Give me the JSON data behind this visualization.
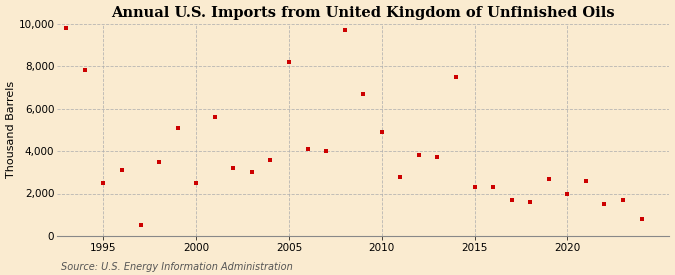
{
  "title": "Annual U.S. Imports from United Kingdom of Unfinished Oils",
  "ylabel": "Thousand Barrels",
  "source": "Source: U.S. Energy Information Administration",
  "background_color": "#faebd0",
  "marker_color": "#cc0000",
  "years": [
    1993,
    1994,
    1995,
    1996,
    1997,
    1998,
    1999,
    2000,
    2001,
    2002,
    2003,
    2004,
    2005,
    2006,
    2007,
    2008,
    2009,
    2010,
    2011,
    2012,
    2013,
    2014,
    2015,
    2016,
    2017,
    2018,
    2019,
    2020,
    2021,
    2022,
    2023,
    2024
  ],
  "values": [
    9800,
    7800,
    2500,
    3100,
    500,
    3500,
    5100,
    2500,
    5600,
    3200,
    3000,
    3600,
    8200,
    4100,
    4000,
    9700,
    6700,
    4900,
    2800,
    3800,
    3700,
    7500,
    2300,
    2300,
    1700,
    1600,
    2700,
    2000,
    2600,
    1500,
    1700,
    800
  ],
  "ylim": [
    0,
    10000
  ],
  "yticks": [
    0,
    2000,
    4000,
    6000,
    8000,
    10000
  ],
  "xlim": [
    1992.5,
    2025.5
  ],
  "xticks": [
    1995,
    2000,
    2005,
    2010,
    2015,
    2020
  ],
  "grid_color": "#b0b0b0",
  "title_fontsize": 10.5,
  "label_fontsize": 8,
  "tick_fontsize": 7.5,
  "source_fontsize": 7
}
